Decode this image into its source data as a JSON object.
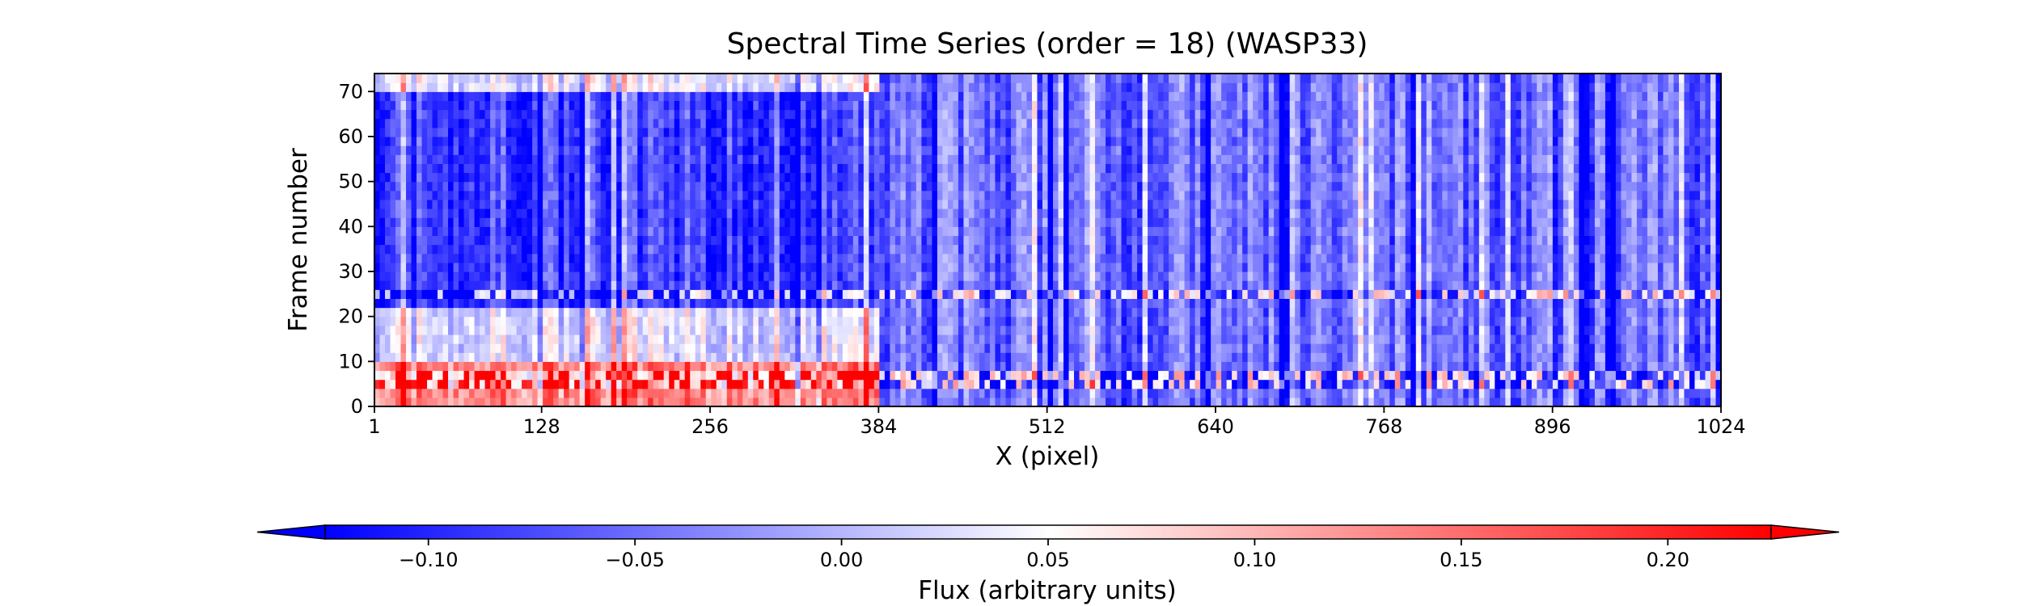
{
  "chart_data": {
    "type": "heatmap",
    "title": "Spectral Time Series (order = 18) (WASP33)",
    "xlabel": "X (pixel)",
    "ylabel": "Frame number",
    "xlim": [
      1,
      1024
    ],
    "ylim": [
      0,
      74
    ],
    "x_ticks": [
      1,
      128,
      256,
      384,
      512,
      640,
      768,
      896,
      1024
    ],
    "y_ticks": [
      0,
      10,
      20,
      30,
      40,
      50,
      60,
      70
    ],
    "grid": false,
    "colormap": "bwr",
    "colorbar": {
      "label": "Flux (arbitrary units)",
      "orientation": "horizontal",
      "placement": "bottom",
      "vmin": -0.125,
      "vmax": 0.225,
      "extend": "both",
      "ticks": [
        -0.1,
        -0.05,
        0.0,
        0.05,
        0.1,
        0.15,
        0.2
      ],
      "tick_labels": [
        "−0.10",
        "−0.05",
        "0.00",
        "0.05",
        "0.10",
        "0.15",
        "0.20"
      ]
    },
    "regions": [
      {
        "x": [
          1,
          384
        ],
        "y": [
          0,
          10
        ],
        "level": 0.14
      },
      {
        "x": [
          1,
          384
        ],
        "y": [
          10,
          22
        ],
        "level": 0.03
      },
      {
        "x": [
          1,
          384
        ],
        "y": [
          22,
          70
        ],
        "level": -0.08
      },
      {
        "x": [
          1,
          384
        ],
        "y": [
          70,
          74
        ],
        "level": 0.04
      },
      {
        "x": [
          384,
          1024
        ],
        "y": [
          0,
          74
        ],
        "level": -0.05
      }
    ],
    "bad_frames": [
      6,
      25
    ]
  }
}
